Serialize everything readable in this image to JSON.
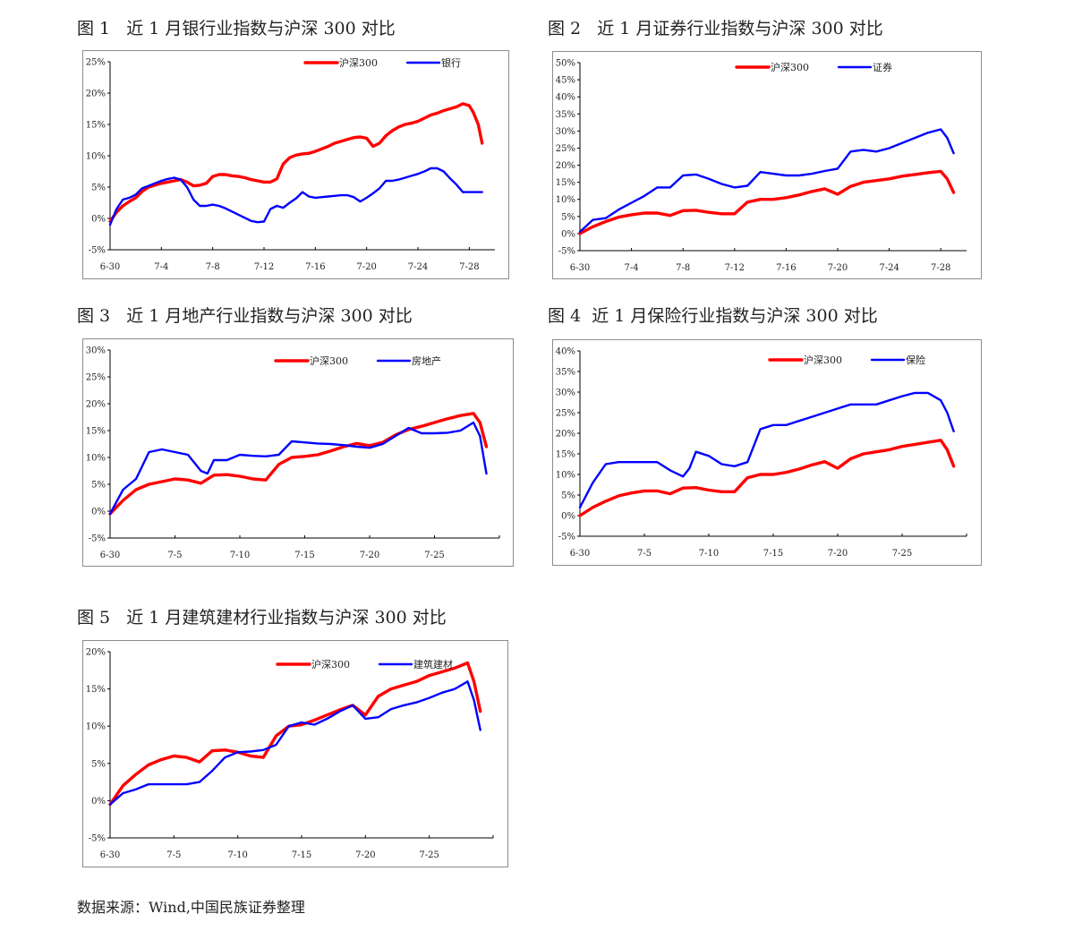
{
  "source_note": "数据来源：Wind,中国民族证券整理",
  "colors": {
    "hs300": "#ff0000",
    "sector": "#0000ff",
    "axis": "#000000",
    "frame": "#8c8c8c"
  },
  "figures": [
    {
      "title": "图 1   近 1 月银行业指数与沪深 300 对比"
    },
    {
      "title": "图 2   近 1 月证券行业指数与沪深 300 对比"
    },
    {
      "title": "图 3   近 1 月地产行业指数与沪深 300 对比"
    },
    {
      "title": "图 4  近 1 月保险行业指数与沪深 300 对比"
    },
    {
      "title": "图 5   近 1 月建筑建材行业指数与沪深 300 对比"
    }
  ],
  "chart_data": [
    {
      "type": "line",
      "yticks": [
        "-5%",
        "0%",
        "5%",
        "10%",
        "15%",
        "20%",
        "25%"
      ],
      "ylim": [
        -5,
        25
      ],
      "xlim": [
        0,
        30
      ],
      "xticks": [
        {
          "day": 0,
          "label": "6-30"
        },
        {
          "day": 4,
          "label": "7-4"
        },
        {
          "day": 8,
          "label": "7-8"
        },
        {
          "day": 12,
          "label": "7-12"
        },
        {
          "day": 16,
          "label": "7-16"
        },
        {
          "day": 20,
          "label": "7-20"
        },
        {
          "day": 24,
          "label": "7-24"
        },
        {
          "day": 28,
          "label": "7-28"
        }
      ],
      "legend": "top-center",
      "series": [
        {
          "name": "沪深300",
          "color": "#ff0000",
          "x": [
            0,
            0.5,
            1,
            1.5,
            2,
            2.5,
            3,
            3.5,
            4,
            4.5,
            5,
            5.5,
            6,
            6.5,
            7,
            7.5,
            8,
            8.5,
            9,
            9.5,
            10,
            10.5,
            11,
            11.5,
            12,
            12.5,
            13,
            13.5,
            14,
            14.5,
            15,
            15.5,
            16,
            16.5,
            17,
            17.5,
            18,
            18.5,
            19,
            19.5,
            20,
            20.5,
            21,
            21.5,
            22,
            22.5,
            23,
            23.5,
            24,
            24.5,
            25,
            25.5,
            26,
            26.5,
            27,
            27.5,
            28,
            28.3,
            28.7,
            29
          ],
          "values": [
            -0.5,
            1,
            2,
            2.7,
            3.3,
            4.3,
            5,
            5.3,
            5.6,
            5.8,
            6,
            6.2,
            5.8,
            5.2,
            5.3,
            5.6,
            6.7,
            7,
            7,
            6.8,
            6.7,
            6.5,
            6.2,
            6,
            5.8,
            5.8,
            6.3,
            8.7,
            9.7,
            10.1,
            10.3,
            10.4,
            10.7,
            11.1,
            11.5,
            12,
            12.3,
            12.6,
            12.9,
            13,
            12.8,
            11.5,
            12,
            13.2,
            14,
            14.6,
            15,
            15.2,
            15.5,
            16,
            16.5,
            16.8,
            17.2,
            17.5,
            17.8,
            18.3,
            18,
            17,
            15,
            12
          ]
        },
        {
          "name": "银行",
          "color": "#0000ff",
          "x": [
            0,
            0.5,
            1,
            1.5,
            2,
            2.5,
            3,
            3.5,
            4,
            4.5,
            5,
            5.5,
            6,
            6.5,
            7,
            7.5,
            8,
            8.5,
            9,
            9.5,
            10,
            10.5,
            11,
            11.5,
            12,
            12.5,
            13,
            13.5,
            14,
            14.5,
            15,
            15.5,
            16,
            16.5,
            17,
            17.5,
            18,
            18.5,
            19,
            19.5,
            20,
            20.5,
            21,
            21.5,
            22,
            22.5,
            23,
            23.5,
            24,
            24.5,
            25,
            25.5,
            26,
            26.5,
            27,
            27.5,
            28,
            28.3,
            28.7,
            29
          ],
          "values": [
            -1,
            1.5,
            3,
            3.3,
            3.8,
            4.8,
            5.2,
            5.6,
            6,
            6.3,
            6.5,
            6.2,
            5,
            3,
            2,
            2,
            2.2,
            2,
            1.6,
            1.1,
            0.6,
            0.1,
            -0.4,
            -0.6,
            -0.5,
            1.5,
            2,
            1.7,
            2.5,
            3.2,
            4.2,
            3.5,
            3.3,
            3.4,
            3.5,
            3.6,
            3.7,
            3.7,
            3.4,
            2.7,
            3.3,
            4,
            4.8,
            6,
            6,
            6.2,
            6.5,
            6.8,
            7.1,
            7.5,
            8,
            8,
            7.5,
            6.4,
            5.4,
            4.2,
            4.2,
            4.2,
            4.2,
            4.2
          ]
        }
      ]
    },
    {
      "type": "line",
      "yticks": [
        "-5%",
        "0%",
        "5%",
        "10%",
        "15%",
        "20%",
        "25%",
        "30%",
        "35%",
        "40%",
        "45%",
        "50%"
      ],
      "ylim": [
        -5,
        50
      ],
      "xlim": [
        0,
        30
      ],
      "xticks": [
        {
          "day": 0,
          "label": "6-30"
        },
        {
          "day": 4,
          "label": "7-4"
        },
        {
          "day": 8,
          "label": "7-8"
        },
        {
          "day": 12,
          "label": "7-12"
        },
        {
          "day": 16,
          "label": "7-16"
        },
        {
          "day": 20,
          "label": "7-20"
        },
        {
          "day": 24,
          "label": "7-24"
        },
        {
          "day": 28,
          "label": "7-28"
        }
      ],
      "legend": "top-center",
      "series": [
        {
          "name": "沪深300",
          "color": "#ff0000",
          "x": [
            0,
            1,
            2,
            3,
            4,
            5,
            6,
            7,
            8,
            9,
            10,
            11,
            12,
            13,
            14,
            15,
            16,
            17,
            18,
            19,
            20,
            21,
            22,
            23,
            24,
            25,
            26,
            27,
            28,
            28.5,
            29
          ],
          "values": [
            0,
            2,
            3.5,
            4.8,
            5.5,
            6,
            6,
            5.3,
            6.7,
            6.8,
            6.2,
            5.8,
            5.8,
            9.2,
            10,
            10,
            10.5,
            11.3,
            12.3,
            13.1,
            11.5,
            13.8,
            15,
            15.5,
            16,
            16.8,
            17.3,
            17.8,
            18.2,
            16,
            12
          ]
        },
        {
          "name": "证券",
          "color": "#0000ff",
          "x": [
            0,
            1,
            2,
            3,
            4,
            5,
            6,
            7,
            8,
            9,
            10,
            11,
            12,
            13,
            14,
            15,
            16,
            17,
            18,
            19,
            20,
            21,
            22,
            23,
            24,
            25,
            26,
            27,
            28,
            28.5,
            29
          ],
          "values": [
            0.5,
            4,
            4.5,
            7,
            9,
            11,
            13.5,
            13.5,
            17,
            17.3,
            16,
            14.5,
            13.5,
            14,
            18,
            17.5,
            17,
            17,
            17.5,
            18.3,
            19,
            24,
            24.5,
            24,
            25,
            26.5,
            28,
            29.5,
            30.5,
            28,
            23.5
          ]
        }
      ]
    },
    {
      "type": "line",
      "yticks": [
        "-5%",
        "0%",
        "5%",
        "10%",
        "15%",
        "20%",
        "25%",
        "30%"
      ],
      "ylim": [
        -5,
        30
      ],
      "xlim": [
        0,
        30
      ],
      "xticks": [
        {
          "day": 0,
          "label": "6-30"
        },
        {
          "day": 5,
          "label": "7-5"
        },
        {
          "day": 10,
          "label": "7-10"
        },
        {
          "day": 15,
          "label": "7-15"
        },
        {
          "day": 20,
          "label": "7-20"
        },
        {
          "day": 25,
          "label": "7-25"
        }
      ],
      "legend": "top-center",
      "series": [
        {
          "name": "沪深300",
          "color": "#ff0000",
          "x": [
            0,
            1,
            2,
            3,
            4,
            5,
            6,
            7,
            8,
            9,
            10,
            11,
            12,
            13,
            14,
            15,
            16,
            17,
            18,
            19,
            20,
            21,
            22,
            23,
            24,
            25,
            26,
            27,
            28,
            28.5,
            29
          ],
          "values": [
            -0.5,
            2,
            4,
            5,
            5.5,
            6,
            5.8,
            5.2,
            6.7,
            6.8,
            6.5,
            6,
            5.8,
            8.7,
            10,
            10.2,
            10.5,
            11.2,
            12,
            12.6,
            12.2,
            12.8,
            14.2,
            15.2,
            15.8,
            16.5,
            17.2,
            17.8,
            18.2,
            16.5,
            12
          ]
        },
        {
          "name": "房地产",
          "color": "#0000ff",
          "x": [
            0,
            1,
            2,
            3,
            4,
            5,
            6,
            7,
            7.5,
            8,
            9,
            10,
            11,
            12,
            13,
            14,
            15,
            16,
            17,
            18,
            19,
            20,
            21,
            22,
            23,
            24,
            25,
            26,
            27,
            28,
            28.5,
            29
          ],
          "values": [
            -0.5,
            4,
            6,
            11,
            11.5,
            11,
            10.5,
            7.5,
            7,
            9.5,
            9.5,
            10.5,
            10.3,
            10.2,
            10.5,
            13,
            12.8,
            12.6,
            12.5,
            12.3,
            12,
            11.8,
            12.5,
            14,
            15.5,
            14.5,
            14.5,
            14.6,
            15,
            16.5,
            14,
            7
          ]
        }
      ]
    },
    {
      "type": "line",
      "yticks": [
        "-5%",
        "0%",
        "5%",
        "10%",
        "15%",
        "20%",
        "25%",
        "30%",
        "35%",
        "40%"
      ],
      "ylim": [
        -5,
        40
      ],
      "xlim": [
        0,
        30
      ],
      "xticks": [
        {
          "day": 0,
          "label": "6-30"
        },
        {
          "day": 5,
          "label": "7-5"
        },
        {
          "day": 10,
          "label": "7-10"
        },
        {
          "day": 15,
          "label": "7-15"
        },
        {
          "day": 20,
          "label": "7-20"
        },
        {
          "day": 25,
          "label": "7-25"
        }
      ],
      "legend": "top-center",
      "series": [
        {
          "name": "沪深300",
          "color": "#ff0000",
          "x": [
            0,
            1,
            2,
            3,
            4,
            5,
            6,
            7,
            8,
            9,
            10,
            11,
            12,
            13,
            14,
            15,
            16,
            17,
            18,
            19,
            20,
            21,
            22,
            23,
            24,
            25,
            26,
            27,
            28,
            28.5,
            29
          ],
          "values": [
            0,
            2,
            3.5,
            4.8,
            5.5,
            6,
            6,
            5.3,
            6.7,
            6.8,
            6.2,
            5.8,
            5.8,
            9.2,
            10,
            10,
            10.5,
            11.3,
            12.3,
            13.1,
            11.5,
            13.8,
            15,
            15.5,
            16,
            16.8,
            17.3,
            17.8,
            18.3,
            16,
            12
          ]
        },
        {
          "name": "保险",
          "color": "#0000ff",
          "x": [
            0,
            1,
            2,
            3,
            4,
            5,
            6,
            7,
            8,
            8.5,
            9,
            10,
            11,
            12,
            13,
            14,
            15,
            16,
            17,
            18,
            19,
            20,
            21,
            22,
            23,
            24,
            25,
            26,
            27,
            28,
            28.5,
            29
          ],
          "values": [
            2,
            8,
            12.5,
            13,
            13,
            13,
            13,
            11,
            9.5,
            11.5,
            15.5,
            14.5,
            12.5,
            12,
            13,
            21,
            22,
            22,
            23,
            24,
            25,
            26,
            27,
            27,
            27,
            28,
            29,
            29.8,
            29.8,
            28,
            25,
            20.5
          ]
        }
      ]
    },
    {
      "type": "line",
      "yticks": [
        "-5%",
        "0%",
        "5%",
        "10%",
        "15%",
        "20%"
      ],
      "ylim": [
        -5,
        20
      ],
      "xlim": [
        0,
        30
      ],
      "xticks": [
        {
          "day": 0,
          "label": "6-30"
        },
        {
          "day": 5,
          "label": "7-5"
        },
        {
          "day": 10,
          "label": "7-10"
        },
        {
          "day": 15,
          "label": "7-15"
        },
        {
          "day": 20,
          "label": "7-20"
        },
        {
          "day": 25,
          "label": "7-25"
        }
      ],
      "legend": "top-center",
      "series": [
        {
          "name": "沪深300",
          "color": "#ff0000",
          "x": [
            0,
            1,
            2,
            3,
            4,
            5,
            6,
            7,
            8,
            9,
            10,
            11,
            12,
            13,
            14,
            15,
            16,
            17,
            18,
            19,
            20,
            21,
            22,
            23,
            24,
            25,
            26,
            27,
            28,
            28.5,
            29
          ],
          "values": [
            -0.5,
            2,
            3.5,
            4.8,
            5.5,
            6,
            5.8,
            5.2,
            6.7,
            6.8,
            6.5,
            6,
            5.8,
            8.7,
            10,
            10.2,
            10.8,
            11.5,
            12.2,
            12.8,
            11.5,
            14,
            15,
            15.5,
            16,
            16.8,
            17.3,
            17.8,
            18.5,
            16,
            12
          ]
        },
        {
          "name": "建筑建材",
          "color": "#0000ff",
          "x": [
            0,
            1,
            2,
            3,
            4,
            5,
            6,
            7,
            8,
            9,
            10,
            11,
            12,
            13,
            14,
            15,
            16,
            17,
            18,
            19,
            20,
            21,
            22,
            23,
            24,
            25,
            26,
            27,
            28,
            28.5,
            29
          ],
          "values": [
            -0.5,
            1,
            1.5,
            2.2,
            2.2,
            2.2,
            2.2,
            2.5,
            4,
            5.8,
            6.5,
            6.6,
            6.8,
            7.5,
            10,
            10.5,
            10.2,
            11,
            12,
            12.8,
            11,
            11.2,
            12.3,
            12.8,
            13.2,
            13.8,
            14.5,
            15,
            16,
            13.5,
            9.5
          ]
        }
      ]
    }
  ]
}
